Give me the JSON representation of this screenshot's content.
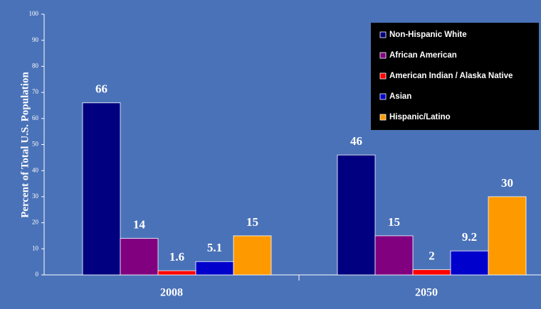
{
  "chart_data": {
    "type": "bar",
    "y_label": "Percent of Total U.S. Population",
    "categories": [
      "2008",
      "2050"
    ],
    "series": [
      {
        "name": "Non-Hispanic White",
        "color": "#000080",
        "values": [
          66,
          46
        ]
      },
      {
        "name": "African American",
        "color": "#800080",
        "values": [
          14,
          15
        ]
      },
      {
        "name": "American Indian / Alaska Native",
        "color": "#ff0000",
        "values": [
          1.6,
          2
        ]
      },
      {
        "name": "Asian",
        "color": "#0000cc",
        "values": [
          5.1,
          9.2
        ]
      },
      {
        "name": "Hispanic/Latino",
        "color": "#ff9900",
        "values": [
          15,
          30
        ]
      }
    ],
    "ylim": [
      0,
      100
    ],
    "yticks": [
      0,
      10,
      20,
      30,
      40,
      50,
      60,
      70,
      80,
      90,
      100
    ],
    "grid": false,
    "legend": "top-right"
  }
}
